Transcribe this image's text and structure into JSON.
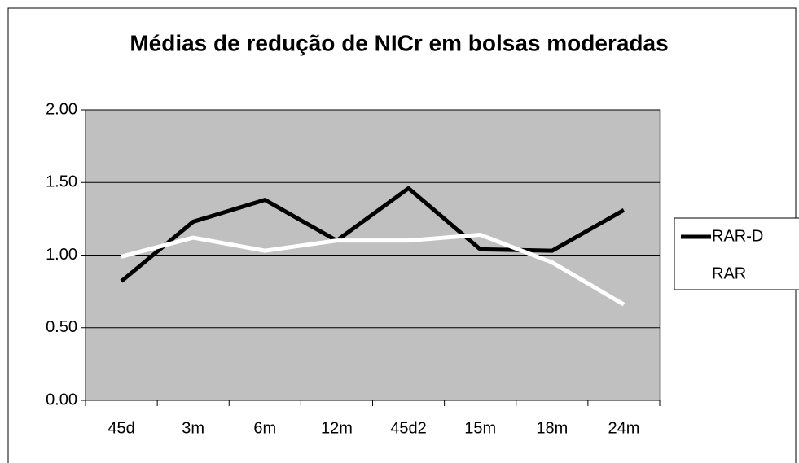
{
  "chart_data": {
    "type": "line",
    "title": "Médias de redução de NICr em bolsas moderadas",
    "categories": [
      "45d",
      "3m",
      "6m",
      "12m",
      "45d2",
      "15m",
      "18m",
      "24m"
    ],
    "series": [
      {
        "name": "RAR-D",
        "color": "#000000",
        "values": [
          0.82,
          1.23,
          1.38,
          1.1,
          1.46,
          1.04,
          1.03,
          1.31
        ]
      },
      {
        "name": "RAR",
        "color": "#ffffff",
        "values": [
          0.99,
          1.12,
          1.03,
          1.1,
          1.1,
          1.14,
          0.95,
          0.66
        ]
      }
    ],
    "ylim": [
      0,
      2
    ],
    "yticks": [
      {
        "value": 0,
        "label": "0.00"
      },
      {
        "value": 0.5,
        "label": "0.50"
      },
      {
        "value": 1,
        "label": "1.00"
      },
      {
        "value": 1.5,
        "label": "1.50"
      },
      {
        "value": 2,
        "label": "2.00"
      }
    ],
    "grid": true,
    "legend": "right",
    "plot_background": "#c0c0c0"
  }
}
